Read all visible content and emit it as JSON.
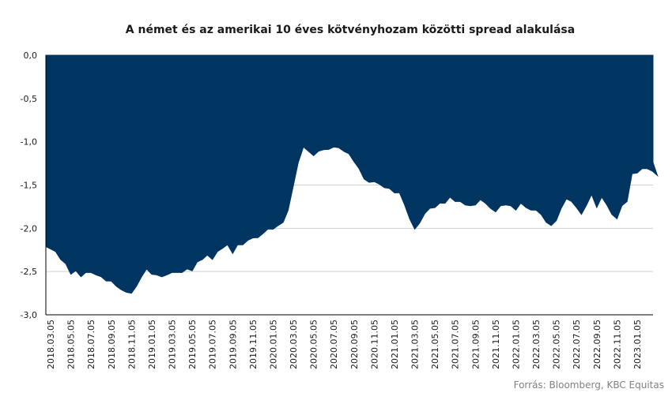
{
  "chart_data": {
    "type": "area",
    "title": "A német és az amerikai 10 éves kötvényhozam közötti spread alakulása",
    "source": "Forrás: Bloomberg,  KBC Equitas",
    "ylim": [
      -3.0,
      0.0
    ],
    "y_ticks": [
      "0,0",
      "-0,5",
      "-1,0",
      "-1,5",
      "-2,0",
      "-2,5",
      "-3,0"
    ],
    "y_tick_values": [
      0,
      -0.5,
      -1.0,
      -1.5,
      -2.0,
      -2.5,
      -3.0
    ],
    "x_ticks": [
      "2018.03.05",
      "2018.05.05",
      "2018.07.05",
      "2018.09.05",
      "2018.11.05",
      "2019.01.05",
      "2019.03.05",
      "2019.05.05",
      "2019.07.05",
      "2019.09.05",
      "2019.11.05",
      "2020.01.05",
      "2020.03.05",
      "2020.05.05",
      "2020.07.05",
      "2020.09.05",
      "2020.11.05",
      "2021.01.05",
      "2021.03.05",
      "2021.05.05",
      "2021.07.05",
      "2021.09.05",
      "2021.11.05",
      "2022.01.05",
      "2022.03.05",
      "2022.05.05",
      "2022.07.05",
      "2022.09.05",
      "2022.11.05",
      "2023.01.05"
    ],
    "grid": true,
    "area_color": "#003562",
    "x": [
      "2018.03.05",
      "2018.03.20",
      "2018.04.05",
      "2018.04.20",
      "2018.05.05",
      "2018.05.20",
      "2018.06.05",
      "2018.06.20",
      "2018.07.05",
      "2018.07.20",
      "2018.08.05",
      "2018.08.20",
      "2018.09.05",
      "2018.09.20",
      "2018.10.05",
      "2018.10.20",
      "2018.11.05",
      "2018.11.20",
      "2018.12.05",
      "2018.12.20",
      "2019.01.05",
      "2019.01.20",
      "2019.02.05",
      "2019.02.20",
      "2019.03.05",
      "2019.03.20",
      "2019.04.05",
      "2019.04.20",
      "2019.05.05",
      "2019.05.20",
      "2019.06.05",
      "2019.06.20",
      "2019.07.05",
      "2019.07.20",
      "2019.08.05",
      "2019.08.20",
      "2019.09.05",
      "2019.09.20",
      "2019.10.05",
      "2019.10.20",
      "2019.11.05",
      "2019.11.20",
      "2019.12.05",
      "2019.12.20",
      "2020.01.05",
      "2020.01.20",
      "2020.02.05",
      "2020.02.20",
      "2020.03.05",
      "2020.03.20",
      "2020.04.05",
      "2020.04.20",
      "2020.05.05",
      "2020.05.20",
      "2020.06.05",
      "2020.06.20",
      "2020.07.05",
      "2020.07.20",
      "2020.08.05",
      "2020.08.20",
      "2020.09.05",
      "2020.09.20",
      "2020.10.05",
      "2020.10.20",
      "2020.11.05",
      "2020.11.20",
      "2020.12.05",
      "2020.12.20",
      "2021.01.05",
      "2021.01.20",
      "2021.02.05",
      "2021.02.20",
      "2021.03.05",
      "2021.03.20",
      "2021.04.05",
      "2021.04.20",
      "2021.05.05",
      "2021.05.20",
      "2021.06.05",
      "2021.06.20",
      "2021.07.05",
      "2021.07.20",
      "2021.08.05",
      "2021.08.20",
      "2021.09.05",
      "2021.09.20",
      "2021.10.05",
      "2021.10.20",
      "2021.11.05",
      "2021.11.20",
      "2021.12.05",
      "2021.12.20",
      "2022.01.05",
      "2022.01.20",
      "2022.02.05",
      "2022.02.20",
      "2022.03.05",
      "2022.03.20",
      "2022.04.05",
      "2022.04.20",
      "2022.05.05",
      "2022.05.20",
      "2022.06.05",
      "2022.06.20",
      "2022.07.05",
      "2022.07.20",
      "2022.08.05",
      "2022.08.20",
      "2022.09.05",
      "2022.09.20",
      "2022.10.05",
      "2022.10.20",
      "2022.11.05",
      "2022.11.20",
      "2022.12.05",
      "2022.12.20",
      "2023.01.05",
      "2023.01.20",
      "2023.02.05",
      "2023.02.20",
      "2023.03.05",
      "2023.03.20"
    ],
    "values": [
      -2.2,
      -2.28,
      -2.35,
      -2.42,
      -2.52,
      -2.5,
      -2.55,
      -2.52,
      -2.5,
      -2.55,
      -2.55,
      -2.62,
      -2.6,
      -2.68,
      -2.7,
      -2.75,
      -2.74,
      -2.68,
      -2.55,
      -2.48,
      -2.52,
      -2.55,
      -2.55,
      -2.55,
      -2.5,
      -2.52,
      -2.5,
      -2.48,
      -2.48,
      -2.4,
      -2.35,
      -2.32,
      -2.35,
      -2.28,
      -2.22,
      -2.2,
      -2.28,
      -2.2,
      -2.18,
      -2.15,
      -2.1,
      -2.12,
      -2.05,
      -2.02,
      -2.0,
      -1.98,
      -1.92,
      -1.8,
      -1.5,
      -1.25,
      -1.05,
      -1.12,
      -1.15,
      -1.12,
      -1.08,
      -1.1,
      -1.05,
      -1.08,
      -1.1,
      -1.15,
      -1.22,
      -1.32,
      -1.42,
      -1.48,
      -1.45,
      -1.5,
      -1.52,
      -1.55,
      -1.58,
      -1.6,
      -1.72,
      -1.9,
      -2.0,
      -1.95,
      -1.82,
      -1.78,
      -1.75,
      -1.72,
      -1.7,
      -1.65,
      -1.68,
      -1.7,
      -1.72,
      -1.75,
      -1.72,
      -1.68,
      -1.7,
      -1.78,
      -1.8,
      -1.75,
      -1.72,
      -1.75,
      -1.78,
      -1.72,
      -1.75,
      -1.8,
      -1.78,
      -1.85,
      -1.92,
      -1.98,
      -1.9,
      -1.78,
      -1.65,
      -1.7,
      -1.75,
      -1.85,
      -1.72,
      -1.62,
      -1.75,
      -1.65,
      -1.72,
      -1.85,
      -1.88,
      -1.75,
      -1.68,
      -1.38,
      -1.35,
      -1.32,
      -1.3,
      -1.35,
      -1.38,
      -1.25
    ]
  }
}
